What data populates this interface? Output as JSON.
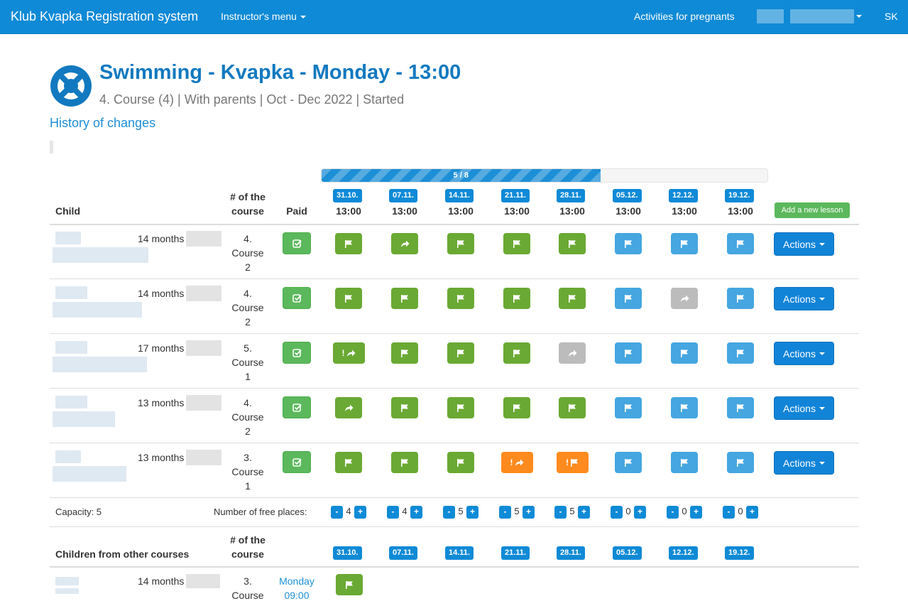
{
  "navbar": {
    "brand": "Klub Kvapka Registration system",
    "menu": "Instructor's menu",
    "activities": "Activities for pregnants",
    "lang": "SK"
  },
  "header": {
    "title": "Swimming - Kvapka - Monday - 13:00",
    "subtitle": "4. Course (4) | With parents | Oct - Dec 2022 | Started",
    "history": "History of changes"
  },
  "progress": {
    "label": "5 / 8",
    "value": 0.625
  },
  "table": {
    "col_child": "Child",
    "col_course_1": "# of the",
    "col_course_2": "course",
    "col_paid": "Paid",
    "dates": [
      "31.10.",
      "07.11.",
      "14.11.",
      "21.11.",
      "28.11.",
      "05.12.",
      "12.12.",
      "19.12."
    ],
    "time": "13:00",
    "add_lesson": "Add a new lesson",
    "rows": [
      {
        "age": "14 months",
        "course_no": "4.",
        "course_word": "Course",
        "course_sub": "2",
        "actions": "Actions"
      },
      {
        "age": "14 months",
        "course_no": "4.",
        "course_word": "Course",
        "course_sub": "2",
        "actions": "Actions"
      },
      {
        "age": "17 months",
        "course_no": "5.",
        "course_word": "Course",
        "course_sub": "1",
        "actions": "Actions"
      },
      {
        "age": "13 months",
        "course_no": "4.",
        "course_word": "Course",
        "course_sub": "2",
        "actions": "Actions"
      },
      {
        "age": "13 months",
        "course_no": "3.",
        "course_word": "Course",
        "course_sub": "1",
        "actions": "Actions"
      }
    ],
    "capacity": "Capacity: 5",
    "free_label": "Number of free places:",
    "free": [
      "4",
      "4",
      "5",
      "5",
      "5",
      "0",
      "0",
      "0"
    ],
    "minus": "-",
    "plus": "+",
    "excl": "!"
  },
  "other": {
    "title": "Children from other courses",
    "col_course_1": "# of the",
    "col_course_2": "course",
    "row": {
      "age": "14 months",
      "course_no": "3.",
      "course_word": "Course",
      "day": "Monday",
      "time": "09:00"
    }
  },
  "status_colors": {
    "attended": "#6aa933",
    "future": "#45a6e0",
    "excused": "#bcbcbc",
    "warning": "#ff8a1e"
  }
}
